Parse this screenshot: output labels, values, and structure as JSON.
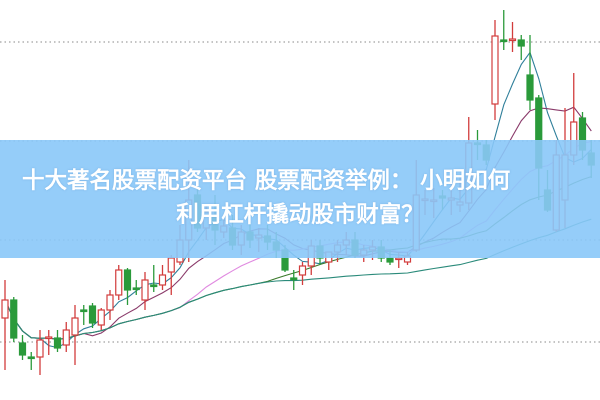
{
  "title": {
    "line1": "十大著名股票配资平台 股票配资举例： 小明如何",
    "line2": "利用杠杆撬动股市财富？"
  },
  "colors": {
    "up": "#d23c3c",
    "down": "#2a9a3a",
    "banner": "#89c8f8",
    "grid": "#888888",
    "ma": [
      "#2f7f9a",
      "#8a3a6a",
      "#e08ae0",
      "#3a7a2a",
      "#2a8a7a"
    ]
  },
  "chart_data": {
    "type": "candlestick",
    "title": "",
    "grid": true,
    "ylim": [
      0,
      40
    ],
    "candles_ohlc": [
      [
        8.2,
        12.0,
        3.0,
        10.0
      ],
      [
        10.0,
        10.3,
        5.8,
        6.2
      ],
      [
        5.7,
        6.5,
        4.0,
        4.5
      ],
      [
        4.3,
        4.8,
        3.0,
        4.2
      ],
      [
        4.3,
        7.0,
        2.5,
        6.0
      ],
      [
        6.2,
        7.0,
        4.5,
        6.3
      ],
      [
        6.2,
        7.0,
        4.8,
        5.2
      ],
      [
        5.5,
        7.8,
        4.8,
        7.0
      ],
      [
        6.5,
        9.5,
        3.5,
        8.2
      ],
      [
        9.0,
        9.5,
        7.5,
        8.9
      ],
      [
        9.4,
        9.7,
        7.2,
        7.7
      ],
      [
        7.5,
        9.2,
        7.0,
        9.0
      ],
      [
        9.0,
        11.0,
        8.0,
        10.5
      ],
      [
        10.5,
        13.5,
        10.0,
        13.0
      ],
      [
        13.0,
        13.2,
        9.5,
        11.0
      ],
      [
        11.2,
        12.0,
        10.5,
        11.1
      ],
      [
        10.0,
        12.8,
        9.0,
        12.0
      ],
      [
        11.5,
        13.5,
        10.8,
        11.4
      ],
      [
        11.5,
        13.5,
        11.0,
        12.5
      ],
      [
        12.8,
        14.5,
        10.5,
        14.2
      ],
      [
        13.8,
        17.5,
        13.5,
        16.0
      ],
      [
        16.0,
        24.0,
        13.8,
        20.0
      ],
      [
        20.5,
        21.5,
        16.8,
        17.2
      ],
      [
        17.2,
        19.5,
        16.0,
        18.8
      ],
      [
        18.5,
        20.5,
        15.5,
        17.0
      ],
      [
        16.8,
        18.2,
        16.2,
        17.4
      ],
      [
        17.2,
        18.5,
        15.0,
        15.5
      ],
      [
        15.5,
        17.5,
        14.5,
        16.8
      ],
      [
        16.8,
        17.8,
        15.2,
        16.0
      ],
      [
        16.2,
        17.2,
        14.8,
        16.5
      ],
      [
        16.4,
        17.5,
        15.0,
        15.8
      ],
      [
        15.8,
        16.8,
        14.2,
        15.0
      ],
      [
        15.0,
        15.5,
        12.8,
        13.0
      ],
      [
        12.2,
        13.0,
        11.0,
        12.1
      ],
      [
        12.5,
        13.8,
        11.5,
        13.4
      ],
      [
        13.4,
        16.0,
        12.5,
        15.4
      ],
      [
        15.4,
        16.0,
        13.5,
        14.2
      ],
      [
        13.8,
        14.5,
        13.0,
        14.8
      ],
      [
        14.8,
        16.0,
        13.8,
        15.5
      ],
      [
        15.5,
        16.8,
        14.5,
        16.0
      ],
      [
        16.0,
        16.8,
        14.2,
        14.5
      ],
      [
        14.5,
        15.5,
        13.8,
        15.0
      ],
      [
        15.0,
        16.0,
        14.0,
        15.3
      ],
      [
        15.3,
        16.0,
        13.8,
        14.2
      ],
      [
        14.2,
        15.0,
        13.5,
        13.8
      ],
      [
        14.1,
        14.8,
        13.2,
        14.2
      ],
      [
        13.8,
        14.8,
        13.5,
        14.4
      ],
      [
        15.0,
        24.0,
        14.8,
        20.5
      ],
      [
        20.0,
        21.0,
        18.5,
        20.1
      ],
      [
        19.9,
        21.2,
        18.2,
        20.0
      ],
      [
        20.4,
        21.0,
        19.0,
        20.2
      ],
      [
        20.0,
        22.5,
        18.5,
        20.2
      ],
      [
        19.5,
        22.5,
        18.8,
        19.8
      ],
      [
        19.7,
        28.3,
        19.0,
        25.7
      ],
      [
        25.7,
        27.0,
        24.0,
        25.6
      ],
      [
        25.5,
        26.0,
        23.5,
        24.0
      ],
      [
        29.6,
        38.0,
        28.0,
        36.4
      ],
      [
        36.0,
        39.0,
        35.0,
        35.9
      ],
      [
        36.0,
        37.8,
        34.8,
        36.1
      ],
      [
        36.0,
        36.5,
        34.0,
        35.4
      ],
      [
        32.5,
        36.5,
        29.0,
        30.0
      ],
      [
        30.2,
        30.5,
        20.0,
        23.2
      ],
      [
        21.0,
        23.0,
        18.8,
        19.0
      ],
      [
        17.0,
        26.0,
        16.8,
        24.5
      ],
      [
        20.0,
        29.2,
        17.2,
        24.5
      ],
      [
        24.5,
        32.7,
        23.5,
        27.8
      ],
      [
        28.2,
        28.8,
        24.0,
        25.0
      ],
      [
        24.7,
        26.0,
        22.2,
        23.5
      ]
    ],
    "moving_average_periods": [
      5,
      10,
      20,
      30,
      60
    ],
    "gridlines_y": [
      35.8,
      25.9,
      16.0,
      5.8
    ]
  }
}
